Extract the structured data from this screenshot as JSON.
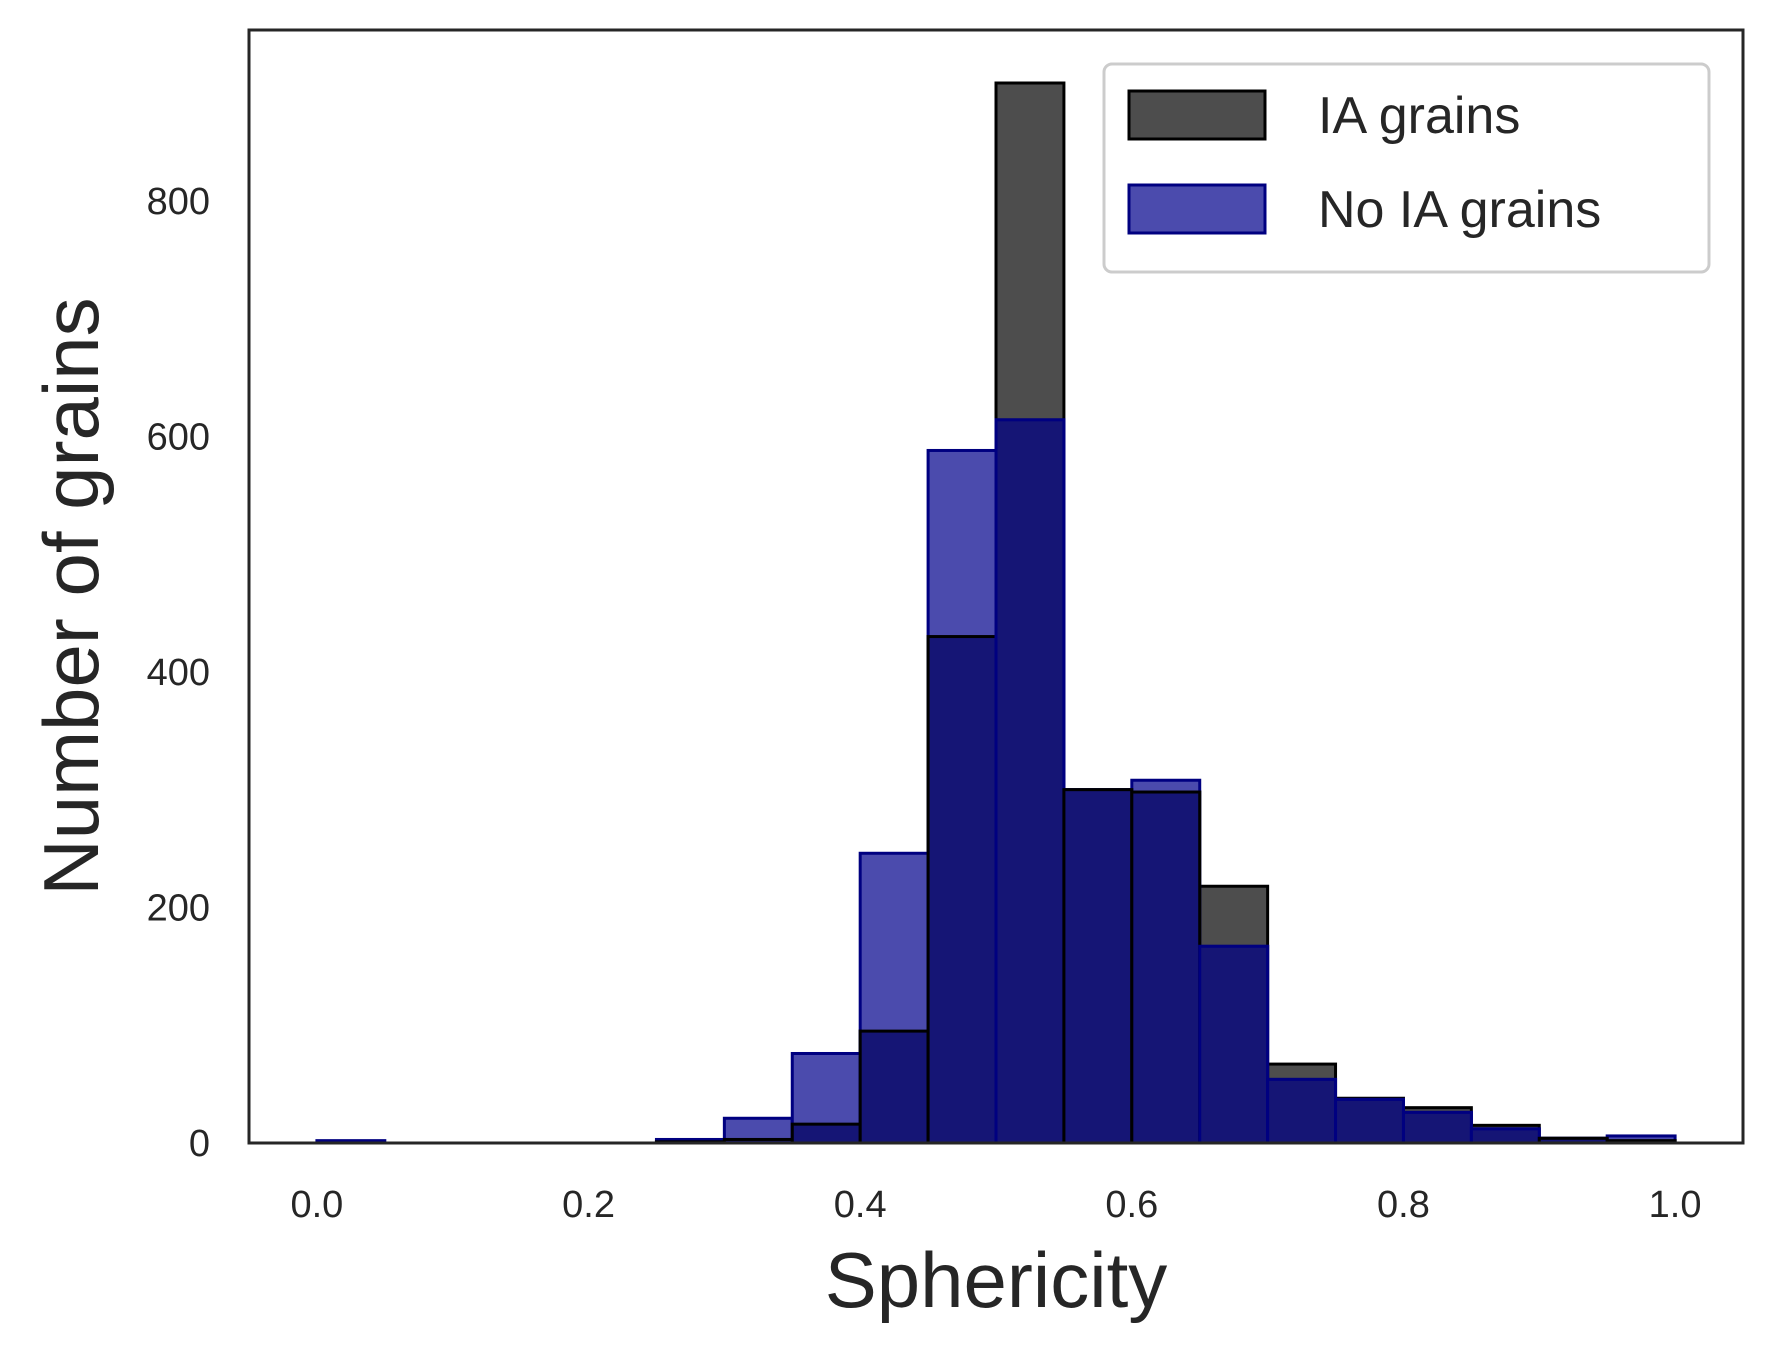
{
  "chart_data": {
    "type": "bar",
    "title": "",
    "xlabel": "Sphericity",
    "ylabel": "Number of grains",
    "xlim": [
      -0.05,
      1.05
    ],
    "ylim": [
      0,
      945
    ],
    "xticks": [
      0.0,
      0.2,
      0.4,
      0.6,
      0.8,
      1.0
    ],
    "xtick_labels": [
      "0.0",
      "0.2",
      "0.4",
      "0.6",
      "0.8",
      "1.0"
    ],
    "yticks": [
      0,
      200,
      400,
      600,
      800
    ],
    "ytick_labels": [
      "0",
      "200",
      "400",
      "600",
      "800"
    ],
    "grid": false,
    "legend_position": "top-right",
    "bin_edges": [
      0.0,
      0.05,
      0.1,
      0.15,
      0.2,
      0.25,
      0.3,
      0.35,
      0.4,
      0.45,
      0.5,
      0.55,
      0.6,
      0.65,
      0.7,
      0.75,
      0.8,
      0.85,
      0.9,
      0.95,
      1.0
    ],
    "series": [
      {
        "name": "IA grains",
        "fill": "#4d4d4d",
        "edge": "#000000",
        "values": [
          0,
          0,
          0,
          0,
          0,
          1,
          3,
          16,
          95,
          430,
          900,
          300,
          298,
          218,
          67,
          38,
          30,
          15,
          4,
          2
        ]
      },
      {
        "name": "No IA grains",
        "fill": "#4b4bad",
        "edge": "#000080",
        "values": [
          2,
          0,
          0,
          0,
          0,
          3,
          21,
          76,
          246,
          588,
          614,
          300,
          308,
          167,
          54,
          37,
          26,
          12,
          4,
          6
        ]
      }
    ],
    "overlap_fill": "#151575"
  }
}
